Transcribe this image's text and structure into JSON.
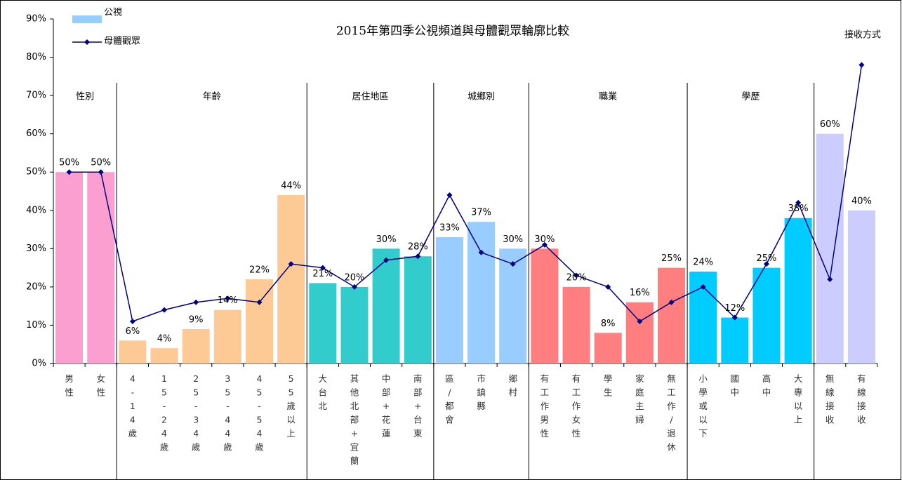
{
  "chart_data": {
    "type": "bar",
    "title": "2015年第四季公視頻道與母體觀眾輪廓比較",
    "categories": [
      "男性",
      "女性",
      "4-14歲",
      "15-24歲",
      "25-34歲",
      "35-44歲",
      "45-54歲",
      "55歲以上",
      "大台北",
      "其他北部+宜蘭",
      "中部+花蓮",
      "南部+台東",
      "區/都會",
      "市鎮縣",
      "鄉村",
      "有工作男性",
      "有工作女性",
      "學生",
      "家庭主婦",
      "無工作/退休",
      "小學或以下",
      "國中",
      "高中",
      "大專以上",
      "無線接收",
      "有線接收"
    ],
    "groups": [
      {
        "name": "性別",
        "start": 0,
        "count": 2,
        "color": "#fa9fd0"
      },
      {
        "name": "年齡",
        "start": 2,
        "count": 6,
        "color": "#fdca96"
      },
      {
        "name": "居住地區",
        "start": 8,
        "count": 4,
        "color": "#33cccc"
      },
      {
        "name": "城鄉別",
        "start": 12,
        "count": 3,
        "color": "#99ccff"
      },
      {
        "name": "職業",
        "start": 15,
        "count": 5,
        "color": "#ff7f80"
      },
      {
        "name": "學歷",
        "start": 20,
        "count": 4,
        "color": "#00ccff"
      },
      {
        "name": "接收方式",
        "start": 24,
        "count": 2,
        "color": "#ccccff"
      }
    ],
    "series": [
      {
        "name": "公視",
        "type": "bar",
        "color": "#99ccff",
        "values": [
          50,
          50,
          6,
          4,
          9,
          14,
          22,
          44,
          21,
          20,
          30,
          28,
          33,
          37,
          30,
          30,
          20,
          8,
          16,
          25,
          24,
          12,
          25,
          38,
          60,
          40
        ],
        "value_labels": [
          "50%",
          "50%",
          "6%",
          "4%",
          "9%",
          "14%",
          "22%",
          "44%",
          "21%",
          "20%",
          "30%",
          "28%",
          "33%",
          "37%",
          "30%",
          "30%",
          "20%",
          "8%",
          "16%",
          "25%",
          "24%",
          "12%",
          "25%",
          "38%",
          "60%",
          "40%"
        ]
      },
      {
        "name": "母體觀眾",
        "type": "line",
        "color": "#000080",
        "values": [
          50,
          50,
          11,
          14,
          16,
          17,
          16,
          26,
          25,
          20,
          27,
          28,
          44,
          29,
          26,
          31,
          23,
          20,
          11,
          16,
          20,
          12,
          26,
          42,
          22,
          78
        ]
      }
    ],
    "ylim": [
      0,
      90
    ],
    "yticks": [
      {
        "value": 0,
        "label": "0%"
      },
      {
        "value": 10,
        "label": "10%"
      },
      {
        "value": 20,
        "label": "20%"
      },
      {
        "value": 30,
        "label": "30%"
      },
      {
        "value": 40,
        "label": "40%"
      },
      {
        "value": 50,
        "label": "50%"
      },
      {
        "value": 60,
        "label": "60%"
      },
      {
        "value": 70,
        "label": "70%"
      },
      {
        "value": 80,
        "label": "80%"
      },
      {
        "value": 90,
        "label": "90%"
      }
    ],
    "grid": false
  }
}
